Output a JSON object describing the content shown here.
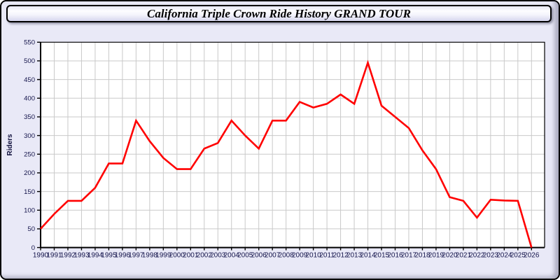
{
  "window": {
    "title": "California Triple Crown Ride History GRAND TOUR"
  },
  "chart_data": {
    "type": "line",
    "title": "California Triple Crown Ride History GRAND TOUR",
    "xlabel": "",
    "ylabel": "Riders",
    "categories": [
      1990,
      1991,
      1992,
      1993,
      1994,
      1995,
      1996,
      1997,
      1998,
      1999,
      2000,
      2001,
      2002,
      2003,
      2004,
      2005,
      2006,
      2007,
      2008,
      2009,
      2010,
      2011,
      2012,
      2013,
      2014,
      2015,
      2016,
      2017,
      2018,
      2019,
      2020,
      2021,
      2022,
      2023,
      2024,
      2025,
      2026
    ],
    "series": [
      {
        "name": "Riders",
        "color": "#ff0000",
        "values": [
          50,
          90,
          125,
          125,
          160,
          225,
          225,
          340,
          285,
          240,
          210,
          210,
          265,
          280,
          340,
          300,
          265,
          340,
          340,
          390,
          375,
          385,
          410,
          385,
          495,
          380,
          350,
          320,
          260,
          210,
          135,
          125,
          80,
          128,
          126,
          125,
          0
        ]
      }
    ],
    "ylim": [
      0,
      550
    ],
    "ytick_step": 50,
    "grid": true,
    "legend": "none",
    "colors": {
      "line": "#ff0000",
      "grid": "#c9c9c9",
      "axis": "#000000",
      "tick_label": "#14144b",
      "plot_bg": "#ffffff",
      "page_bg": "#e9e9f7"
    }
  }
}
